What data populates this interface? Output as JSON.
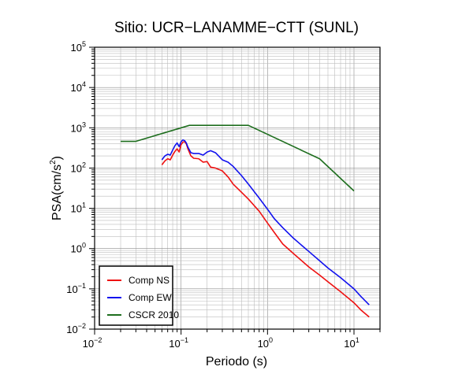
{
  "chart_data": {
    "type": "line",
    "title": "Sitio: UCR−LANAMME−CTT (SUNL)",
    "xlabel": "Periodo (s)",
    "ylabel_base": "PSA(cm/s",
    "ylabel_sup": "2",
    "ylabel_close": ")",
    "x_scale": "log",
    "y_scale": "log",
    "xlim": [
      0.01,
      20
    ],
    "ylim": [
      0.01,
      100000
    ],
    "grid": true,
    "legend_position": "bottom-left",
    "x_ticks": [
      {
        "value": 0.01,
        "base": "10",
        "exp": "−2"
      },
      {
        "value": 0.1,
        "base": "10",
        "exp": "−1"
      },
      {
        "value": 1,
        "base": "10",
        "exp": "0"
      },
      {
        "value": 10,
        "base": "10",
        "exp": "1"
      }
    ],
    "y_ticks": [
      {
        "value": 0.01,
        "base": "10",
        "exp": "−2"
      },
      {
        "value": 0.1,
        "base": "10",
        "exp": "−1"
      },
      {
        "value": 1,
        "base": "10",
        "exp": "0"
      },
      {
        "value": 10,
        "base": "10",
        "exp": "1"
      },
      {
        "value": 100,
        "base": "10",
        "exp": "2"
      },
      {
        "value": 1000,
        "base": "10",
        "exp": "3"
      },
      {
        "value": 10000,
        "base": "10",
        "exp": "4"
      },
      {
        "value": 100000,
        "base": "10",
        "exp": "5"
      }
    ],
    "series": [
      {
        "name": "Comp NS",
        "color": "#ee1111",
        "x": [
          0.06,
          0.065,
          0.07,
          0.075,
          0.08,
          0.085,
          0.09,
          0.095,
          0.1,
          0.105,
          0.11,
          0.115,
          0.12,
          0.13,
          0.14,
          0.16,
          0.18,
          0.2,
          0.22,
          0.25,
          0.3,
          0.35,
          0.4,
          0.5,
          0.6,
          0.8,
          1.0,
          1.2,
          1.5,
          2,
          3,
          4,
          5,
          7,
          10,
          12,
          15
        ],
        "y": [
          120,
          150,
          170,
          160,
          210,
          260,
          300,
          250,
          380,
          440,
          450,
          400,
          300,
          200,
          175,
          170,
          140,
          145,
          105,
          100,
          85,
          60,
          40,
          25,
          17,
          8.5,
          4.3,
          2.5,
          1.3,
          0.75,
          0.35,
          0.22,
          0.15,
          0.085,
          0.045,
          0.03,
          0.02
        ]
      },
      {
        "name": "Comp EW",
        "color": "#1111ee",
        "x": [
          0.06,
          0.065,
          0.07,
          0.075,
          0.08,
          0.085,
          0.09,
          0.095,
          0.1,
          0.105,
          0.11,
          0.115,
          0.12,
          0.13,
          0.14,
          0.16,
          0.18,
          0.2,
          0.22,
          0.25,
          0.3,
          0.35,
          0.4,
          0.5,
          0.6,
          0.8,
          1.0,
          1.2,
          1.5,
          2,
          3,
          4,
          5,
          7,
          10,
          12,
          15
        ],
        "y": [
          160,
          200,
          220,
          210,
          280,
          360,
          420,
          340,
          450,
          500,
          480,
          420,
          330,
          240,
          230,
          230,
          210,
          250,
          270,
          240,
          160,
          140,
          110,
          65,
          40,
          18,
          9.5,
          5.5,
          3.3,
          1.8,
          0.85,
          0.5,
          0.33,
          0.19,
          0.1,
          0.065,
          0.04
        ]
      },
      {
        "name": "CSCR 2010",
        "color": "#1e6e1e",
        "x": [
          0.02,
          0.03,
          0.125,
          0.6,
          4,
          10
        ],
        "y": [
          460,
          460,
          1150,
          1150,
          170,
          27
        ]
      }
    ]
  }
}
